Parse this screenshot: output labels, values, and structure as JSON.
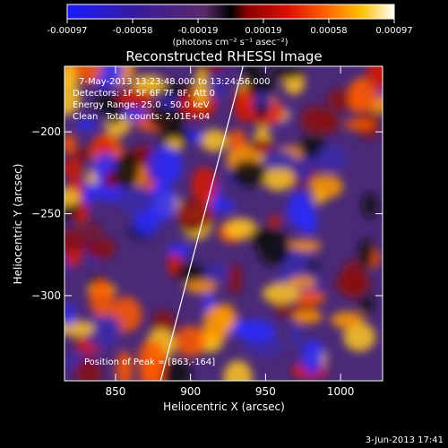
{
  "colorbar": {
    "tick_labels": [
      "-0.00097",
      "-0.00058",
      "-0.00019",
      "0.00019",
      "0.00058",
      "0.00097"
    ],
    "unit_label": "(photons cm⁻² s⁻¹ asec⁻²)"
  },
  "chart_data": {
    "type": "heatmap",
    "title": "Reconstructed RHESSI Image",
    "xlabel": "Heliocentric X (arcsec)",
    "ylabel": "Heliocentric Y (arcsec)",
    "xlim": [
      816,
      1028
    ],
    "ylim": [
      -352,
      -160
    ],
    "x_ticks": [
      850,
      900,
      950,
      1000
    ],
    "y_ticks": [
      -200,
      -250,
      -300
    ],
    "colorbar_range": [
      -0.00097,
      0.00097
    ],
    "colormap": "rainbow: blue to purple to red to orange to yellow to white",
    "limb_line": [
      [
        880,
        -352
      ],
      [
        935,
        -160
      ]
    ],
    "peak": [
      863,
      -164
    ],
    "annotations": {
      "time": "7-May-2013 13:23:48.000 to 13:24:56.000",
      "detectors": "Detectors: 1F 5F 6F 7F 8F, Att 0",
      "energy": "Energy Range: 25.0 - 50.0 keV",
      "method": "Clean",
      "counts": "Total counts: 2.01E+04",
      "peak_label": "Position of Peak = [863,-164]"
    }
  },
  "footer": {
    "date": "3-Jun-2013 17:41"
  }
}
